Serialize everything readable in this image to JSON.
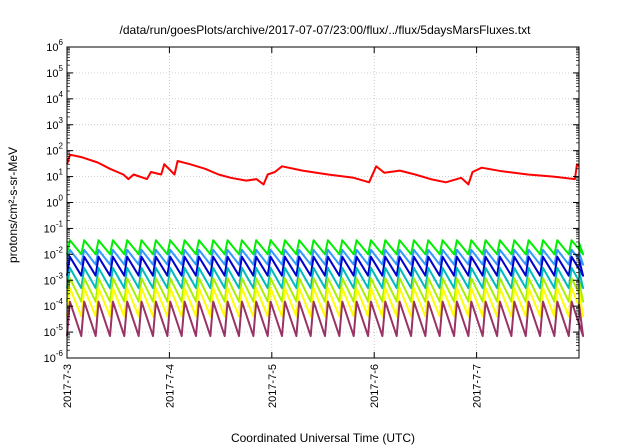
{
  "chart_data": {
    "type": "line",
    "title": "/data/run/goesPlots/archive/2017-07-07/23:00/flux/../flux/5daysMarsFluxes.txt",
    "xlabel": "Coordinated Universal Time (UTC)",
    "ylabel": "protons/cm²-s-sr-MeV",
    "x_domain": [
      0,
      5
    ],
    "x_ticks": [
      {
        "value": 0,
        "label": "2017-7-3"
      },
      {
        "value": 1,
        "label": "2017-7-4"
      },
      {
        "value": 2,
        "label": "2017-7-5"
      },
      {
        "value": 3,
        "label": "2017-7-6"
      },
      {
        "value": 4,
        "label": "2017-7-7"
      }
    ],
    "y_scale": "log",
    "ylim": [
      1e-06,
      1000000.0
    ],
    "y_tick_exponents": [
      -6,
      -5,
      -4,
      -3,
      -2,
      -1,
      0,
      1,
      2,
      3,
      4,
      5,
      6
    ],
    "grid": true,
    "series": [
      {
        "color": "#ff0000",
        "cycle_day": 0.14,
        "max": 30,
        "min": 10,
        "points": [
          [
            0,
            30
          ],
          [
            0.03,
            70
          ],
          [
            0.15,
            55
          ],
          [
            0.3,
            35
          ],
          [
            0.42,
            20
          ],
          [
            0.55,
            12
          ],
          [
            0.6,
            8
          ],
          [
            0.65,
            12
          ],
          [
            0.78,
            8
          ],
          [
            0.82,
            15
          ],
          [
            0.92,
            12
          ],
          [
            0.95,
            30
          ],
          [
            1.05,
            12
          ],
          [
            1.08,
            40
          ],
          [
            1.2,
            30
          ],
          [
            1.35,
            20
          ],
          [
            1.48,
            12
          ],
          [
            1.6,
            9
          ],
          [
            1.75,
            7
          ],
          [
            1.85,
            8
          ],
          [
            1.92,
            5
          ],
          [
            1.96,
            12
          ],
          [
            2.03,
            15
          ],
          [
            2.1,
            25
          ],
          [
            2.3,
            17
          ],
          [
            2.55,
            12
          ],
          [
            2.8,
            9
          ],
          [
            2.95,
            6
          ],
          [
            3.02,
            25
          ],
          [
            3.1,
            14
          ],
          [
            3.25,
            17
          ],
          [
            3.4,
            12
          ],
          [
            3.55,
            8
          ],
          [
            3.7,
            6
          ],
          [
            3.85,
            9
          ],
          [
            3.92,
            5
          ],
          [
            3.96,
            15
          ],
          [
            4.05,
            22
          ],
          [
            4.25,
            16
          ],
          [
            4.5,
            12
          ],
          [
            4.75,
            10
          ],
          [
            4.96,
            8
          ],
          [
            4.98,
            30
          ],
          [
            5,
            25
          ]
        ]
      },
      {
        "color": "#00ee00",
        "cycle_day": 0.14,
        "max": 0.035,
        "min": 0.01
      },
      {
        "color": "#3399ff",
        "cycle_day": 0.14,
        "max": 0.015,
        "min": 0.004
      },
      {
        "color": "#0000cc",
        "cycle_day": 0.14,
        "max": 0.008,
        "min": 0.0015
      },
      {
        "color": "#00bbbb",
        "cycle_day": 0.14,
        "max": 0.003,
        "min": 0.0005
      },
      {
        "color": "#aaee00",
        "cycle_day": 0.14,
        "max": 0.0012,
        "min": 0.00015
      },
      {
        "color": "#ffff00",
        "cycle_day": 0.14,
        "max": 0.0005,
        "min": 4e-05
      },
      {
        "color": "#993366",
        "cycle_day": 0.14,
        "max": 0.00015,
        "min": 7e-06
      }
    ]
  }
}
